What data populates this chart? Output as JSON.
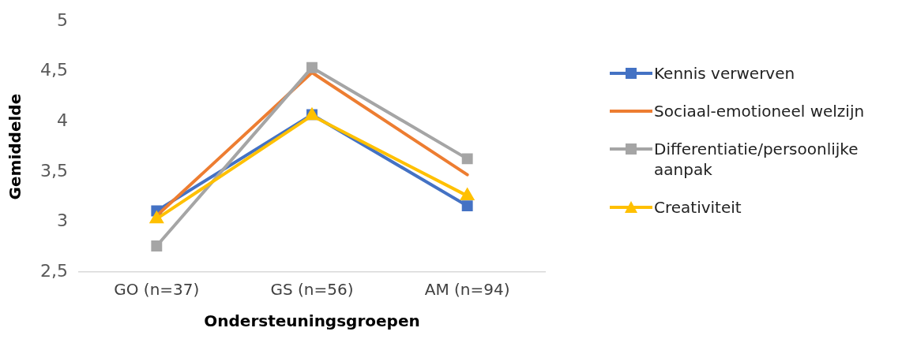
{
  "chart_data": {
    "type": "line",
    "xlabel": "Ondersteuningsgroepen",
    "ylabel": "Gemiddelde",
    "categories": [
      "GO (n=37)",
      "GS (n=56)",
      "AM (n=94)"
    ],
    "series": [
      {
        "name": "Kennis verwerven",
        "color": "#4472c4",
        "marker": "square",
        "values": [
          3.11,
          4.07,
          3.16
        ]
      },
      {
        "name": "Sociaal-emotioneel welzijn",
        "color": "#ed7d31",
        "marker": "none",
        "values": [
          3.06,
          4.49,
          3.47
        ]
      },
      {
        "name": "Differentiatie/persoonlijke aanpak",
        "color": "#a5a5a5",
        "marker": "square",
        "values": [
          2.76,
          4.54,
          3.63
        ]
      },
      {
        "name": "Creativiteit",
        "color": "#ffc000",
        "marker": "triangle",
        "values": [
          3.03,
          4.06,
          3.26
        ]
      }
    ],
    "ylim": [
      2.5,
      5
    ],
    "yticks": [
      {
        "value": 2.5,
        "label": "2,5"
      },
      {
        "value": 3,
        "label": "3"
      },
      {
        "value": 3.5,
        "label": "3,5"
      },
      {
        "value": 4,
        "label": "4"
      },
      {
        "value": 4.5,
        "label": "4,5"
      },
      {
        "value": 5,
        "label": "5"
      }
    ],
    "grid": false,
    "legend": "right",
    "line_style": "solid"
  }
}
